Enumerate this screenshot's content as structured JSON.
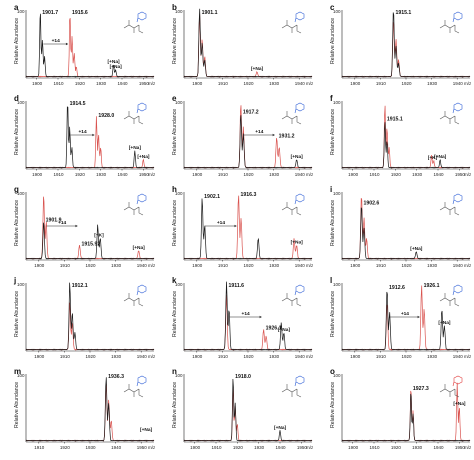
{
  "chart_data": [
    {
      "panel": "a",
      "type": "line",
      "ylabel": "Relative Abundance",
      "ymax_label": "100",
      "xticks": [
        "1900",
        "1910",
        "1920",
        "1930",
        "1940",
        "1950"
      ],
      "xunit": "m/z",
      "xlim": [
        1895,
        1955
      ],
      "peaks_black": [
        {
          "x": 1901.7,
          "y": 1.0
        },
        {
          "x": 1902.7,
          "y": 0.55
        },
        {
          "x": 1903.7,
          "y": 0.3
        },
        {
          "x": 1936,
          "y": 0.18
        },
        {
          "x": 1937,
          "y": 0.1
        }
      ],
      "peaks_red": [
        {
          "x": 1915.6,
          "y": 0.95
        },
        {
          "x": 1916.6,
          "y": 0.6
        },
        {
          "x": 1917.6,
          "y": 0.35
        },
        {
          "x": 1918.6,
          "y": 0.15
        }
      ],
      "labels": [
        "1901.7",
        "1915.6",
        "+14",
        "[+Na]",
        "[+Na]"
      ]
    },
    {
      "panel": "b",
      "type": "line",
      "ylabel": "Relative Abundance",
      "ymax_label": "100",
      "xticks": [
        "1900",
        "1910",
        "1920",
        "1930",
        "1940"
      ],
      "xunit": "m/z",
      "xlim": [
        1895,
        1945
      ],
      "peaks_black": [
        {
          "x": 1901.1,
          "y": 1.0
        },
        {
          "x": 1902.1,
          "y": 0.5
        },
        {
          "x": 1903.1,
          "y": 0.25
        }
      ],
      "peaks_red": [
        {
          "x": 1901.1,
          "y": 0.92
        },
        {
          "x": 1902.1,
          "y": 0.55
        },
        {
          "x": 1903.1,
          "y": 0.3
        },
        {
          "x": 1923.5,
          "y": 0.07
        }
      ],
      "labels": [
        "1901.1",
        "[+Na]"
      ]
    },
    {
      "panel": "c",
      "type": "line",
      "ylabel": "Relative Abundance",
      "ymax_label": "100",
      "xticks": [
        "1900",
        "1910",
        "1920",
        "1930",
        "1940"
      ],
      "xunit": "m/z",
      "xlim": [
        1895,
        1945
      ],
      "peaks_black": [
        {
          "x": 1915.1,
          "y": 1.0
        },
        {
          "x": 1916.1,
          "y": 0.45
        },
        {
          "x": 1917.1,
          "y": 0.2
        }
      ],
      "peaks_red": [
        {
          "x": 1915.1,
          "y": 0.85
        },
        {
          "x": 1916.1,
          "y": 0.55
        },
        {
          "x": 1917.1,
          "y": 0.25
        }
      ],
      "labels": [
        "1915.1"
      ]
    },
    {
      "panel": "d",
      "type": "line",
      "ylabel": "Relative Abundance",
      "ymax_label": "100",
      "xticks": [
        "1900",
        "1910",
        "1920",
        "1930",
        "1940",
        "1950"
      ],
      "xunit": "m/z",
      "xlim": [
        1895,
        1955
      ],
      "peaks_black": [
        {
          "x": 1914.5,
          "y": 1.0
        },
        {
          "x": 1915.5,
          "y": 0.6
        },
        {
          "x": 1916.5,
          "y": 0.3
        },
        {
          "x": 1946,
          "y": 0.25
        }
      ],
      "peaks_red": [
        {
          "x": 1928.0,
          "y": 0.75
        },
        {
          "x": 1929.0,
          "y": 0.5
        },
        {
          "x": 1930.0,
          "y": 0.3
        },
        {
          "x": 1950,
          "y": 0.12
        }
      ],
      "labels": [
        "1914.5",
        "1928.0",
        "+14",
        "[+Na]",
        "[+Na]"
      ]
    },
    {
      "panel": "e",
      "type": "line",
      "ylabel": "Relative Abundance",
      "ymax_label": "100",
      "xticks": [
        "1900",
        "1910",
        "1920",
        "1930",
        "1940"
      ],
      "xunit": "m/z",
      "xlim": [
        1895,
        1945
      ],
      "peaks_black": [
        {
          "x": 1917.2,
          "y": 0.8
        },
        {
          "x": 1918.2,
          "y": 0.5
        },
        {
          "x": 1939,
          "y": 0.12
        }
      ],
      "peaks_red": [
        {
          "x": 1917.2,
          "y": 0.95
        },
        {
          "x": 1918.2,
          "y": 0.6
        },
        {
          "x": 1931.2,
          "y": 0.45
        },
        {
          "x": 1932.2,
          "y": 0.3
        }
      ],
      "labels": [
        "1917.2",
        "1931.2",
        "+14",
        "[+Na]"
      ]
    },
    {
      "panel": "f",
      "type": "line",
      "ylabel": "Relative Abundance",
      "ymax_label": "100",
      "xticks": [
        "1900",
        "1910",
        "1920",
        "1930",
        "1940",
        "1950"
      ],
      "xunit": "m/z",
      "xlim": [
        1895,
        1955
      ],
      "peaks_black": [
        {
          "x": 1915.1,
          "y": 0.7
        },
        {
          "x": 1916.1,
          "y": 0.4
        },
        {
          "x": 1941,
          "y": 0.12
        }
      ],
      "peaks_red": [
        {
          "x": 1915.1,
          "y": 0.95
        },
        {
          "x": 1916.1,
          "y": 0.6
        },
        {
          "x": 1917.1,
          "y": 0.3
        },
        {
          "x": 1937,
          "y": 0.18
        },
        {
          "x": 1938,
          "y": 0.1
        }
      ],
      "labels": [
        "1915.1",
        "[+Na]",
        "[+K]"
      ]
    },
    {
      "panel": "g",
      "type": "line",
      "ylabel": "Relative Abundance",
      "ymax_label": "100",
      "xticks": [
        "1900",
        "1910",
        "1920",
        "1930",
        "1940"
      ],
      "xunit": "m/z",
      "xlim": [
        1895,
        1945
      ],
      "peaks_black": [
        {
          "x": 1901.9,
          "y": 0.55
        },
        {
          "x": 1923,
          "y": 0.5
        },
        {
          "x": 1924,
          "y": 0.3
        }
      ],
      "peaks_red": [
        {
          "x": 1901.9,
          "y": 0.95
        },
        {
          "x": 1902.9,
          "y": 0.55
        },
        {
          "x": 1915.9,
          "y": 0.2
        },
        {
          "x": 1939,
          "y": 0.12
        }
      ],
      "labels": [
        "1901.9",
        "[+Na]",
        "+14",
        "1915.92",
        "[+K]"
      ]
    },
    {
      "panel": "h",
      "type": "line",
      "ylabel": "Relative Abundance",
      "ymax_label": "100",
      "xticks": [
        "1900",
        "1910",
        "1920",
        "1930",
        "1940"
      ],
      "xunit": "m/z",
      "xlim": [
        1895,
        1945
      ],
      "peaks_black": [
        {
          "x": 1902.1,
          "y": 0.9
        },
        {
          "x": 1903.1,
          "y": 0.5
        },
        {
          "x": 1924,
          "y": 0.3
        }
      ],
      "peaks_red": [
        {
          "x": 1916.3,
          "y": 0.95
        },
        {
          "x": 1917.3,
          "y": 0.6
        },
        {
          "x": 1938,
          "y": 0.3
        },
        {
          "x": 1939,
          "y": 0.2
        }
      ],
      "labels": [
        "1902.1",
        "1916.3",
        "+14",
        "[+Na]"
      ]
    },
    {
      "panel": "i",
      "type": "line",
      "ylabel": "Relative Abundance",
      "ymax_label": "100",
      "xticks": [
        "1900",
        "1910",
        "1920",
        "1930",
        "1940"
      ],
      "xunit": "m/z",
      "xlim": [
        1895,
        1945
      ],
      "peaks_black": [
        {
          "x": 1902.6,
          "y": 0.8
        },
        {
          "x": 1903.6,
          "y": 0.45
        },
        {
          "x": 1924,
          "y": 0.1
        }
      ],
      "peaks_red": [
        {
          "x": 1902.6,
          "y": 0.95
        },
        {
          "x": 1903.6,
          "y": 0.6
        },
        {
          "x": 1904.6,
          "y": 0.3
        }
      ],
      "labels": [
        "1902.6",
        "[+Na]"
      ]
    },
    {
      "panel": "j",
      "type": "line",
      "ylabel": "Relative Abundance",
      "ymax_label": "100",
      "xticks": [
        "1900",
        "1910",
        "1920",
        "1930",
        "1940"
      ],
      "xunit": "m/z",
      "xlim": [
        1895,
        1945
      ],
      "peaks_black": [
        {
          "x": 1912.1,
          "y": 1.0
        },
        {
          "x": 1913.1,
          "y": 0.55
        },
        {
          "x": 1914.1,
          "y": 0.25
        }
      ],
      "peaks_red": [
        {
          "x": 1912.1,
          "y": 0.7
        },
        {
          "x": 1913.1,
          "y": 0.4
        }
      ],
      "labels": [
        "1912.1"
      ]
    },
    {
      "panel": "k",
      "type": "line",
      "ylabel": "Relative Abundance",
      "ymax_label": "100",
      "xticks": [
        "1900",
        "1910",
        "1920",
        "1930",
        "1940"
      ],
      "xunit": "m/z",
      "xlim": [
        1895,
        1945
      ],
      "peaks_black": [
        {
          "x": 1911.6,
          "y": 1.0
        },
        {
          "x": 1912.6,
          "y": 0.6
        },
        {
          "x": 1933,
          "y": 0.4
        },
        {
          "x": 1934,
          "y": 0.25
        }
      ],
      "peaks_red": [
        {
          "x": 1911.6,
          "y": 0.8
        },
        {
          "x": 1926.1,
          "y": 0.3
        },
        {
          "x": 1927.1,
          "y": 0.2
        }
      ],
      "labels": [
        "1911.6",
        "+14",
        "1926.1",
        "[+Na]"
      ]
    },
    {
      "panel": "l",
      "type": "line",
      "ylabel": "Relative Abundance",
      "ymax_label": "100",
      "xticks": [
        "1900",
        "1910",
        "1920",
        "1930",
        "1940"
      ],
      "xunit": "m/z",
      "xlim": [
        1895,
        1945
      ],
      "peaks_black": [
        {
          "x": 1912.6,
          "y": 0.9
        },
        {
          "x": 1913.6,
          "y": 0.55
        },
        {
          "x": 1934,
          "y": 0.6
        },
        {
          "x": 1935,
          "y": 0.35
        }
      ],
      "peaks_red": [
        {
          "x": 1912.6,
          "y": 0.7
        },
        {
          "x": 1926.1,
          "y": 0.95
        },
        {
          "x": 1927.1,
          "y": 0.6
        }
      ],
      "labels": [
        "1912.6",
        "1926.1",
        "+14",
        "[+Na]"
      ]
    },
    {
      "panel": "m",
      "type": "line",
      "ylabel": "Relative Abundance",
      "ymax_label": "100",
      "xticks": [
        "1910",
        "1920",
        "1930",
        "1940",
        "1950"
      ],
      "xunit": "m/z",
      "xlim": [
        1905,
        1955
      ],
      "peaks_black": [
        {
          "x": 1936.3,
          "y": 0.95
        },
        {
          "x": 1937.3,
          "y": 0.55
        },
        {
          "x": 1958,
          "y": 0.12
        }
      ],
      "peaks_red": [
        {
          "x": 1936.3,
          "y": 0.85
        },
        {
          "x": 1937.3,
          "y": 0.6
        },
        {
          "x": 1938.3,
          "y": 0.3
        }
      ],
      "labels": [
        "1936.3",
        "[+Na]"
      ]
    },
    {
      "panel": "n",
      "type": "line",
      "ylabel": "Relative Abundance",
      "ymax_label": "100",
      "xticks": [
        "1900",
        "1910",
        "1920",
        "1930",
        "1940",
        "1950"
      ],
      "xunit": "m/z",
      "xlim": [
        1895,
        1955
      ],
      "peaks_black": [
        {
          "x": 1918.0,
          "y": 0.95
        },
        {
          "x": 1919.0,
          "y": 0.55
        },
        {
          "x": 1940,
          "y": 0.15
        }
      ],
      "peaks_red": [
        {
          "x": 1918.0,
          "y": 0.8
        },
        {
          "x": 1919.0,
          "y": 0.5
        },
        {
          "x": 1920.0,
          "y": 0.25
        }
      ],
      "labels": [
        "1918.0",
        "[+Na]"
      ]
    },
    {
      "panel": "o",
      "type": "line",
      "ylabel": "Relative Abundance",
      "ymax_label": "100",
      "xticks": [
        "1900",
        "1910",
        "1920",
        "1930",
        "1940",
        "1950"
      ],
      "xunit": "m/z",
      "xlim": [
        1895,
        1955
      ],
      "peaks_black": [
        {
          "x": 1927.3,
          "y": 0.75
        },
        {
          "x": 1928.3,
          "y": 0.4
        }
      ],
      "peaks_red": [
        {
          "x": 1927.3,
          "y": 0.8
        },
        {
          "x": 1928.3,
          "y": 0.45
        },
        {
          "x": 1949,
          "y": 0.85
        },
        {
          "x": 1950,
          "y": 0.5
        }
      ],
      "labels": [
        "1927.3",
        "[+Na]"
      ]
    }
  ],
  "colors": {
    "black": "#1a1a1a",
    "red": "#d9534f",
    "structure": "#555555",
    "accent_blue": "#2f5fd6",
    "accent_red": "#e03a3a"
  }
}
